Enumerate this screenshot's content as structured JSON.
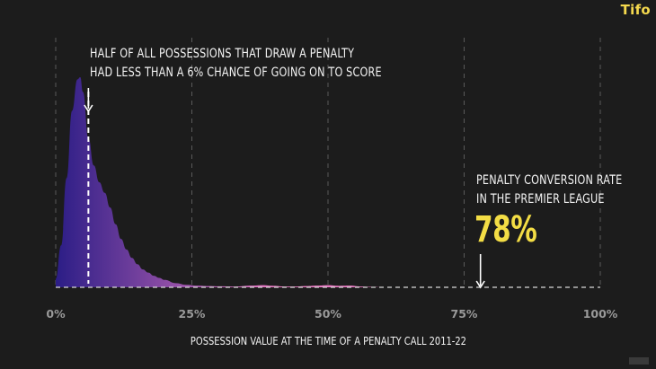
{
  "brand": {
    "logo_text": "Tifo",
    "accent": "#f3dd45"
  },
  "annotations": {
    "left_line1": "HALF OF ALL POSSESSIONS THAT DRAW A PENALTY",
    "left_line2": "HAD LESS THAN A 6% CHANCE OF GOING ON TO SCORE",
    "right_line1": "PENALTY CONVERSION RATE",
    "right_line2": "IN THE PREMIER LEAGUE",
    "right_value": "78%"
  },
  "chart_data": {
    "type": "area",
    "xlabel": "POSSESSION VALUE AT THE TIME OF A PENALTY CALL 2011-22",
    "ylabel": "",
    "xlim": [
      0,
      100
    ],
    "x_ticks": [
      0,
      25,
      50,
      75,
      100
    ],
    "x_tick_labels": [
      "0%",
      "25%",
      "50%",
      "75%",
      "100%"
    ],
    "grid": "vertical dashed",
    "median_marker": 6,
    "conversion_marker": 78,
    "density": {
      "x": [
        0,
        1,
        2,
        3,
        4,
        4.5,
        5,
        6,
        7,
        8,
        9,
        10,
        11,
        12,
        13,
        14,
        15,
        16,
        17,
        18,
        19,
        20,
        22,
        24,
        26,
        28,
        30,
        33,
        36,
        38,
        40,
        42,
        44,
        46,
        48,
        50,
        52,
        54,
        56,
        58,
        60,
        100
      ],
      "y": [
        0.04,
        0.2,
        0.52,
        0.84,
        0.99,
        1.0,
        0.93,
        0.71,
        0.58,
        0.5,
        0.45,
        0.38,
        0.3,
        0.23,
        0.18,
        0.14,
        0.11,
        0.085,
        0.07,
        0.055,
        0.045,
        0.035,
        0.02,
        0.012,
        0.008,
        0.006,
        0.005,
        0.004,
        0.008,
        0.01,
        0.007,
        0.004,
        0.004,
        0.006,
        0.008,
        0.01,
        0.007,
        0.008,
        0.004,
        0.002,
        0.0,
        0.0
      ]
    }
  }
}
